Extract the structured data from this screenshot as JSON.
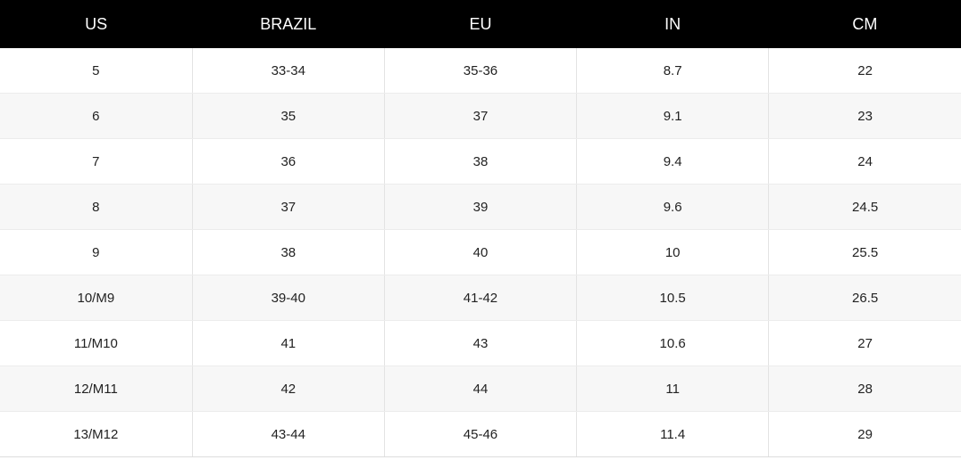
{
  "table": {
    "header": [
      "US",
      "BRAZIL",
      "EU",
      "IN",
      "CM"
    ],
    "rows": [
      [
        "5",
        "33-34",
        "35-36",
        "8.7",
        "22"
      ],
      [
        "6",
        "35",
        "37",
        "9.1",
        "23"
      ],
      [
        "7",
        "36",
        "38",
        "9.4",
        "24"
      ],
      [
        "8",
        "37",
        "39",
        "9.6",
        "24.5"
      ],
      [
        "9",
        "38",
        "40",
        "10",
        "25.5"
      ],
      [
        "10/M9",
        "39-40",
        "41-42",
        "10.5",
        "26.5"
      ],
      [
        "11/M10",
        "41",
        "43",
        "10.6",
        "27"
      ],
      [
        "12/M11",
        "42",
        "44",
        "11",
        "28"
      ],
      [
        "13/M12",
        "43-44",
        "45-46",
        "11.4",
        "29"
      ]
    ]
  }
}
